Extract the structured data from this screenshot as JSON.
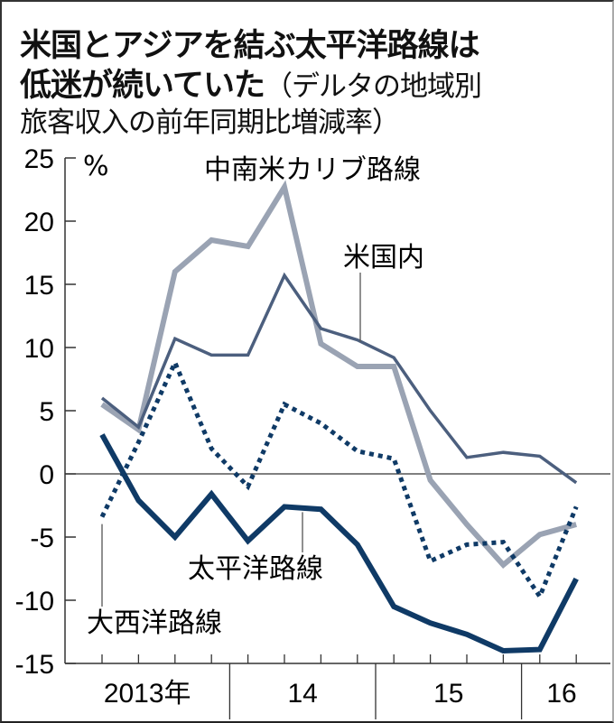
{
  "title": {
    "line1": "米国とアジアを結ぶ太平洋路線は",
    "line2_bold": "低迷が続いていた",
    "line2_sub": "（デルタの地域別",
    "line3": "旅客収入の前年同期比増減率）"
  },
  "chart_data": {
    "type": "line",
    "title": "米国とアジアを結ぶ太平洋路線は低迷が続いていた（デルタの地域別旅客収入の前年同期比増減率）",
    "ylabel": "%",
    "ylim": [
      -15,
      25
    ],
    "yticks": [
      25,
      20,
      15,
      10,
      5,
      0,
      -5,
      -10,
      -15
    ],
    "ytick_labels": [
      "25",
      "20",
      "15",
      "10",
      "5",
      "0",
      "-5",
      "-10",
      "-15"
    ],
    "x": [
      "2013Q1",
      "2013Q2",
      "2013Q3",
      "2013Q4",
      "2014Q1",
      "2014Q2",
      "2014Q3",
      "2014Q4",
      "2015Q1",
      "2015Q2",
      "2015Q3",
      "2015Q4",
      "2016Q1",
      "2016Q2"
    ],
    "year_groups": [
      {
        "label": "2013年",
        "count": 4
      },
      {
        "label": "14",
        "count": 4
      },
      {
        "label": "15",
        "count": 4
      },
      {
        "label": "16",
        "count": 2
      }
    ],
    "grid": false,
    "series": [
      {
        "name": "中南米カリブ路線",
        "color": "#9aa3b3",
        "style": "thick",
        "values": [
          5.5,
          3.5,
          16.0,
          18.5,
          18.0,
          22.7,
          10.3,
          8.5,
          8.5,
          -0.5,
          -4.0,
          -7.2,
          -4.8,
          -4.0
        ]
      },
      {
        "name": "米国内",
        "color": "#4c5f7e",
        "style": "thin",
        "values": [
          6.0,
          3.7,
          10.7,
          9.4,
          9.4,
          15.7,
          11.5,
          10.6,
          9.2,
          5.0,
          1.3,
          1.7,
          1.4,
          -0.7
        ]
      },
      {
        "name": "太平洋路線",
        "color": "#0f3a66",
        "style": "thick",
        "values": [
          3.1,
          -2.1,
          -5.0,
          -1.6,
          -5.3,
          -2.6,
          -2.8,
          -5.6,
          -10.5,
          -11.8,
          -12.7,
          -14.0,
          -13.9,
          -8.3
        ]
      },
      {
        "name": "大西洋路線",
        "color": "#0f3a66",
        "style": "dotted",
        "values": [
          -3.4,
          2.5,
          8.8,
          2.0,
          -1.0,
          5.5,
          4.0,
          1.8,
          1.2,
          -6.9,
          -5.6,
          -5.4,
          -9.7,
          -2.6
        ]
      }
    ]
  }
}
